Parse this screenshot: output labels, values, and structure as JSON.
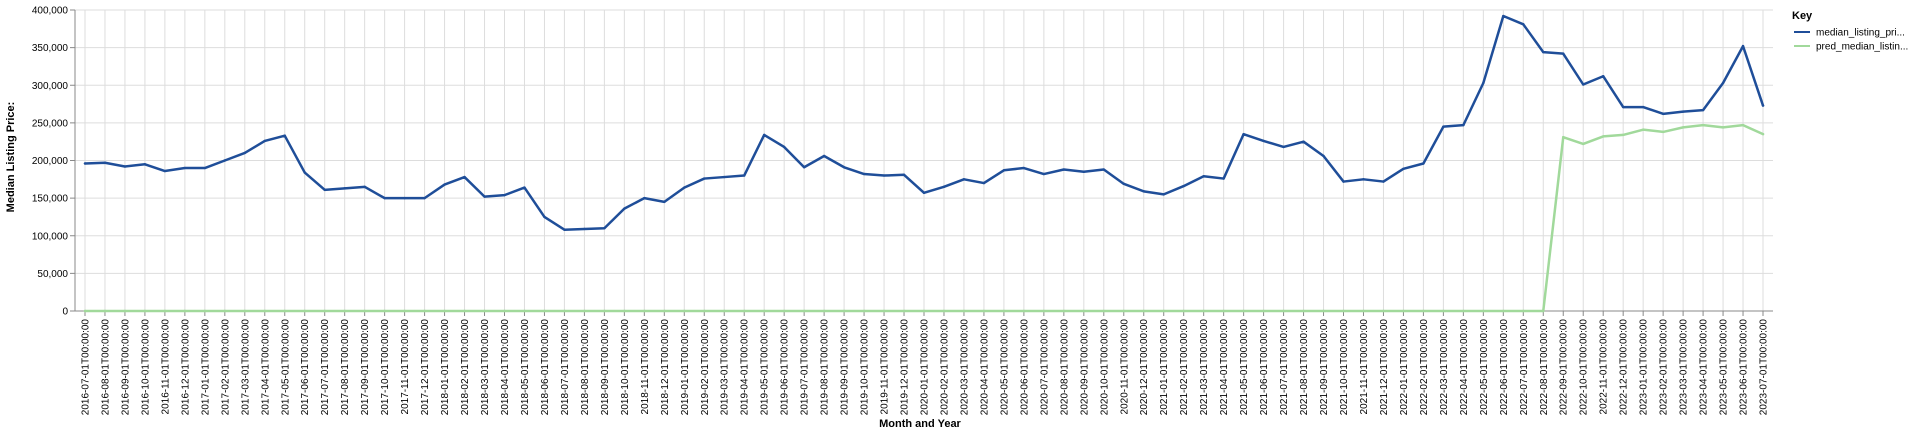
{
  "chart_data": {
    "type": "line",
    "xlabel": "Month and Year",
    "ylabel": "Median Listing Price:",
    "ylim": [
      0,
      400000
    ],
    "y_ticks": [
      "0",
      "50,000",
      "100,000",
      "150,000",
      "200,000",
      "250,000",
      "300,000",
      "350,000",
      "400,000"
    ],
    "grid": true,
    "legend": {
      "title": "Key",
      "placement": "top-right"
    },
    "x": [
      "2016-07-01T00:00:00",
      "2016-08-01T00:00:00",
      "2016-09-01T00:00:00",
      "2016-10-01T00:00:00",
      "2016-11-01T00:00:00",
      "2016-12-01T00:00:00",
      "2017-01-01T00:00:00",
      "2017-02-01T00:00:00",
      "2017-03-01T00:00:00",
      "2017-04-01T00:00:00",
      "2017-05-01T00:00:00",
      "2017-06-01T00:00:00",
      "2017-07-01T00:00:00",
      "2017-08-01T00:00:00",
      "2017-09-01T00:00:00",
      "2017-10-01T00:00:00",
      "2017-11-01T00:00:00",
      "2017-12-01T00:00:00",
      "2018-01-01T00:00:00",
      "2018-02-01T00:00:00",
      "2018-03-01T00:00:00",
      "2018-04-01T00:00:00",
      "2018-05-01T00:00:00",
      "2018-06-01T00:00:00",
      "2018-07-01T00:00:00",
      "2018-08-01T00:00:00",
      "2018-09-01T00:00:00",
      "2018-10-01T00:00:00",
      "2018-11-01T00:00:00",
      "2018-12-01T00:00:00",
      "2019-01-01T00:00:00",
      "2019-02-01T00:00:00",
      "2019-03-01T00:00:00",
      "2019-04-01T00:00:00",
      "2019-05-01T00:00:00",
      "2019-06-01T00:00:00",
      "2019-07-01T00:00:00",
      "2019-08-01T00:00:00",
      "2019-09-01T00:00:00",
      "2019-10-01T00:00:00",
      "2019-11-01T00:00:00",
      "2019-12-01T00:00:00",
      "2020-01-01T00:00:00",
      "2020-02-01T00:00:00",
      "2020-03-01T00:00:00",
      "2020-04-01T00:00:00",
      "2020-05-01T00:00:00",
      "2020-06-01T00:00:00",
      "2020-07-01T00:00:00",
      "2020-08-01T00:00:00",
      "2020-09-01T00:00:00",
      "2020-10-01T00:00:00",
      "2020-11-01T00:00:00",
      "2020-12-01T00:00:00",
      "2021-01-01T00:00:00",
      "2021-02-01T00:00:00",
      "2021-03-01T00:00:00",
      "2021-04-01T00:00:00",
      "2021-05-01T00:00:00",
      "2021-06-01T00:00:00",
      "2021-07-01T00:00:00",
      "2021-08-01T00:00:00",
      "2021-09-01T00:00:00",
      "2021-10-01T00:00:00",
      "2021-11-01T00:00:00",
      "2021-12-01T00:00:00",
      "2022-01-01T00:00:00",
      "2022-02-01T00:00:00",
      "2022-03-01T00:00:00",
      "2022-04-01T00:00:00",
      "2022-05-01T00:00:00",
      "2022-06-01T00:00:00",
      "2022-07-01T00:00:00",
      "2022-08-01T00:00:00",
      "2022-09-01T00:00:00",
      "2022-10-01T00:00:00",
      "2022-11-01T00:00:00",
      "2022-12-01T00:00:00",
      "2023-01-01T00:00:00",
      "2023-02-01T00:00:00",
      "2023-03-01T00:00:00",
      "2023-04-01T00:00:00",
      "2023-05-01T00:00:00",
      "2023-06-01T00:00:00",
      "2023-07-01T00:00:00"
    ],
    "series": [
      {
        "name": "median_listing_pri...",
        "color": "#1f4e99",
        "values": [
          196000,
          197000,
          192000,
          195000,
          186000,
          190000,
          190000,
          200000,
          210000,
          226000,
          233000,
          184000,
          161000,
          163000,
          165000,
          150000,
          150000,
          150000,
          168000,
          178000,
          152000,
          154000,
          164000,
          125000,
          108000,
          109000,
          110000,
          136000,
          150000,
          145000,
          164000,
          176000,
          178000,
          180000,
          234000,
          218000,
          191000,
          206000,
          191000,
          182000,
          180000,
          181000,
          157000,
          165000,
          175000,
          170000,
          187000,
          190000,
          182000,
          188000,
          185000,
          188000,
          169000,
          159000,
          155000,
          166000,
          179000,
          176000,
          235000,
          226000,
          218000,
          225000,
          206000,
          172000,
          175000,
          172000,
          189000,
          196000,
          245000,
          247000,
          303000,
          392000,
          381000,
          344000,
          342000,
          301000,
          312000,
          271000,
          271000,
          262000,
          265000,
          267000,
          303000,
          352000,
          273000
        ]
      },
      {
        "name": "pred_median_listin...",
        "color": "#a1d99b",
        "values": [
          0,
          0,
          0,
          0,
          0,
          0,
          0,
          0,
          0,
          0,
          0,
          0,
          0,
          0,
          0,
          0,
          0,
          0,
          0,
          0,
          0,
          0,
          0,
          0,
          0,
          0,
          0,
          0,
          0,
          0,
          0,
          0,
          0,
          0,
          0,
          0,
          0,
          0,
          0,
          0,
          0,
          0,
          0,
          0,
          0,
          0,
          0,
          0,
          0,
          0,
          0,
          0,
          0,
          0,
          0,
          0,
          0,
          0,
          0,
          0,
          0,
          0,
          0,
          0,
          0,
          0,
          0,
          0,
          0,
          0,
          0,
          0,
          0,
          0,
          231000,
          222000,
          232000,
          234000,
          241000,
          238000,
          244000,
          247000,
          244000,
          247000,
          235000
        ]
      }
    ]
  }
}
